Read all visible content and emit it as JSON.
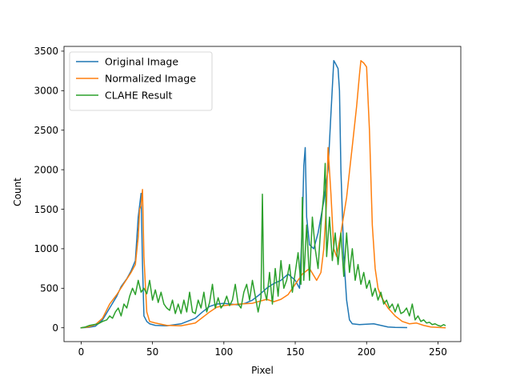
{
  "chart_data": {
    "type": "line",
    "title": "",
    "xlabel": "Pixel",
    "ylabel": "Count",
    "xlim": [
      -12,
      266
    ],
    "ylim": [
      -175,
      3560
    ],
    "xticks": [
      0,
      50,
      100,
      150,
      200,
      250
    ],
    "yticks": [
      0,
      500,
      1000,
      1500,
      2000,
      2500,
      3000,
      3500
    ],
    "grid": false,
    "legend_position": "top-left",
    "series": [
      {
        "name": "Original Image",
        "color": "#1f77b4",
        "x": [
          0,
          5,
          10,
          15,
          20,
          25,
          28,
          32,
          35,
          38,
          40,
          41,
          42,
          43,
          44,
          46,
          48,
          52,
          60,
          70,
          80,
          85,
          90,
          95,
          100,
          105,
          110,
          115,
          120,
          125,
          130,
          135,
          140,
          145,
          150,
          153,
          155,
          156,
          157,
          158,
          160,
          163,
          166,
          170,
          173,
          175,
          177,
          178,
          180,
          181,
          182,
          184,
          186,
          188,
          190,
          195,
          200,
          205,
          210,
          215,
          220,
          225,
          228
        ],
        "values": [
          0,
          5,
          20,
          100,
          250,
          400,
          520,
          620,
          720,
          850,
          1400,
          1550,
          1700,
          800,
          150,
          80,
          50,
          30,
          25,
          50,
          120,
          200,
          270,
          300,
          310,
          300,
          290,
          310,
          350,
          420,
          500,
          560,
          600,
          680,
          600,
          500,
          1300,
          2050,
          2280,
          1400,
          1050,
          1000,
          1200,
          1600,
          2000,
          2700,
          3380,
          3350,
          3280,
          3000,
          2000,
          900,
          350,
          100,
          50,
          40,
          45,
          50,
          30,
          10,
          5,
          3,
          2
        ]
      },
      {
        "name": "Normalized Image",
        "color": "#ff7f0e",
        "x": [
          0,
          5,
          10,
          15,
          20,
          25,
          30,
          35,
          38,
          40,
          41,
          42,
          43,
          44,
          46,
          48,
          52,
          60,
          70,
          80,
          85,
          90,
          95,
          100,
          110,
          120,
          130,
          135,
          140,
          145,
          150,
          155,
          160,
          165,
          168,
          170,
          172,
          173,
          175,
          177,
          179,
          182,
          186,
          190,
          193,
          195,
          196,
          198,
          200,
          202,
          204,
          206,
          208,
          210,
          215,
          220,
          225,
          230,
          235,
          240,
          245,
          250,
          255
        ],
        "values": [
          0,
          10,
          40,
          120,
          300,
          420,
          560,
          700,
          800,
          1150,
          1500,
          1550,
          1750,
          900,
          200,
          80,
          60,
          30,
          25,
          60,
          130,
          200,
          260,
          280,
          300,
          310,
          360,
          330,
          360,
          420,
          550,
          680,
          750,
          600,
          700,
          1000,
          1600,
          2280,
          1700,
          1000,
          900,
          1200,
          1650,
          2300,
          2800,
          3200,
          3380,
          3350,
          3300,
          2500,
          1300,
          750,
          500,
          400,
          250,
          150,
          80,
          50,
          60,
          30,
          10,
          5,
          0
        ]
      },
      {
        "name": "CLAHE Result",
        "color": "#2ca02c",
        "x": [
          0,
          3,
          6,
          9,
          12,
          15,
          18,
          20,
          22,
          24,
          26,
          28,
          30,
          32,
          34,
          36,
          38,
          40,
          42,
          44,
          46,
          48,
          50,
          52,
          54,
          56,
          58,
          60,
          62,
          64,
          66,
          68,
          70,
          72,
          74,
          76,
          78,
          80,
          82,
          84,
          86,
          88,
          90,
          92,
          94,
          96,
          98,
          100,
          102,
          104,
          106,
          108,
          110,
          112,
          114,
          116,
          118,
          120,
          122,
          124,
          126,
          127,
          128,
          130,
          132,
          134,
          136,
          138,
          140,
          142,
          144,
          146,
          148,
          150,
          152,
          154,
          155,
          156,
          158,
          160,
          162,
          164,
          166,
          168,
          170,
          171,
          172,
          174,
          176,
          178,
          180,
          182,
          184,
          186,
          188,
          190,
          192,
          194,
          196,
          198,
          200,
          202,
          204,
          206,
          208,
          210,
          212,
          214,
          216,
          218,
          220,
          222,
          224,
          226,
          228,
          230,
          232,
          234,
          236,
          238,
          240,
          242,
          244,
          246,
          248,
          250,
          252,
          254,
          255
        ],
        "values": [
          0,
          10,
          30,
          40,
          50,
          80,
          100,
          150,
          120,
          200,
          250,
          150,
          300,
          250,
          400,
          500,
          420,
          600,
          450,
          500,
          430,
          600,
          350,
          480,
          320,
          450,
          300,
          250,
          220,
          350,
          180,
          300,
          180,
          350,
          200,
          450,
          200,
          180,
          350,
          250,
          450,
          200,
          320,
          550,
          250,
          380,
          250,
          300,
          400,
          280,
          350,
          550,
          300,
          250,
          450,
          550,
          350,
          600,
          400,
          200,
          380,
          1690,
          500,
          350,
          700,
          300,
          750,
          400,
          850,
          500,
          600,
          800,
          450,
          700,
          950,
          550,
          1650,
          600,
          1300,
          600,
          1400,
          1000,
          750,
          1300,
          1700,
          2080,
          900,
          1400,
          850,
          1200,
          800,
          1200,
          650,
          1200,
          700,
          1000,
          600,
          800,
          550,
          700,
          500,
          600,
          400,
          500,
          350,
          450,
          300,
          350,
          250,
          300,
          200,
          300,
          180,
          200,
          250,
          150,
          300,
          100,
          150,
          80,
          100,
          60,
          70,
          40,
          50,
          30,
          20,
          40,
          30
        ]
      }
    ]
  }
}
